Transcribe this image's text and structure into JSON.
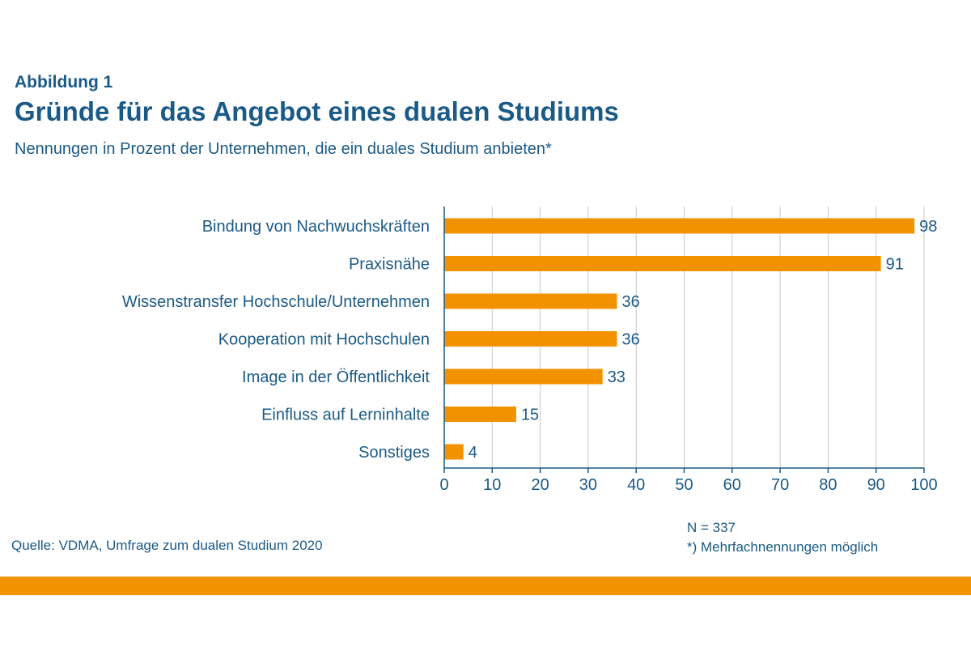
{
  "header": {
    "label": "Abbildung 1",
    "title": "Gründe für das Angebot eines dualen Studiums",
    "subtitle": "Nennungen in Prozent der Unternehmen, die ein duales Studium anbieten*"
  },
  "footer": {
    "source": "Quelle: VDMA, Umfrage zum dualen Studium 2020",
    "n": "N = 337",
    "note": "*) Mehrfachnennungen möglich"
  },
  "colors": {
    "bar": "#f39200",
    "text": "#1b5a86",
    "grid": "#c8c8c8",
    "axis": "#1b5a86"
  },
  "chart_data": {
    "type": "bar",
    "orientation": "horizontal",
    "categories": [
      "Bindung von Nachwuchskräften",
      "Praxisnähe",
      "Wissenstransfer Hochschule/Unternehmen",
      "Kooperation mit Hochschulen",
      "Image in der Öffentlichkeit",
      "Einfluss auf Lerninhalte",
      "Sonstiges"
    ],
    "values": [
      98,
      91,
      36,
      36,
      33,
      15,
      4
    ],
    "xlim": [
      0,
      100
    ],
    "xticks": [
      0,
      10,
      20,
      30,
      40,
      50,
      60,
      70,
      80,
      90,
      100
    ],
    "grid": true,
    "data_labels": true
  }
}
